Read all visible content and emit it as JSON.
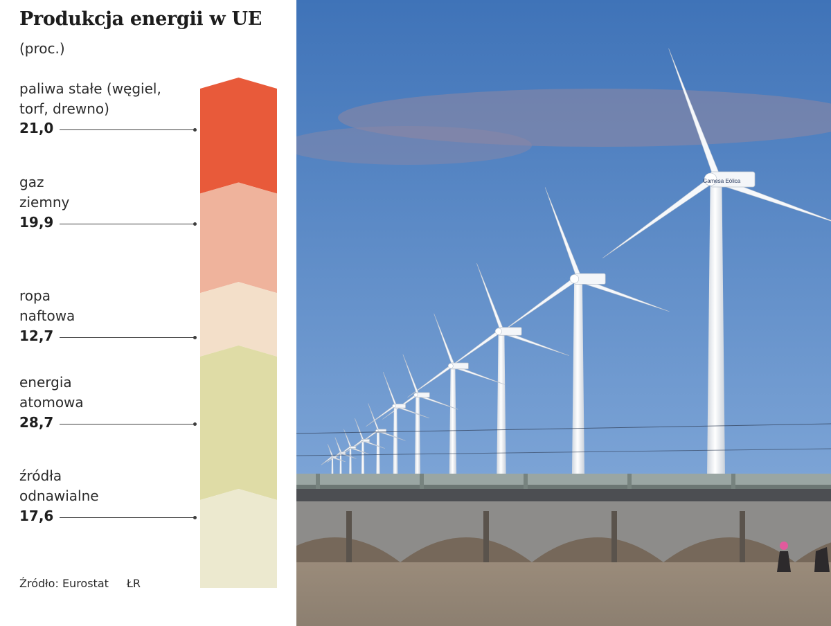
{
  "header": {
    "title": "Produkcja energii w UE",
    "subtitle": "(proc.)"
  },
  "chart_data": {
    "type": "bar",
    "layout": "stacked-single-column",
    "title": "Produkcja energii w UE",
    "unit": "(proc.)",
    "categories": [
      "paliwa stałe (węgiel,\ntorf, drewno)",
      "gaz\nziemny",
      "ropa\nnaftowa",
      "energia\natomowa",
      "źródła\nodnawialne"
    ],
    "values": [
      21.0,
      19.9,
      12.7,
      28.7,
      17.6
    ],
    "value_labels": [
      "21,0",
      "19,9",
      "12,7",
      "28,7",
      "17,6"
    ],
    "colors": [
      "#e85a3a",
      "#efb39c",
      "#f3dfc9",
      "#dfdca6",
      "#ece9cf"
    ]
  },
  "footer": {
    "source": "Źródło: Eurostat",
    "credit": "ŁR"
  },
  "photo": {
    "description_colors": {
      "sky_top": "#3f73b8",
      "sky_bottom": "#8fb3df",
      "ground": "#8c7f70"
    },
    "nacelle_text": "Gamesa Eólica"
  }
}
